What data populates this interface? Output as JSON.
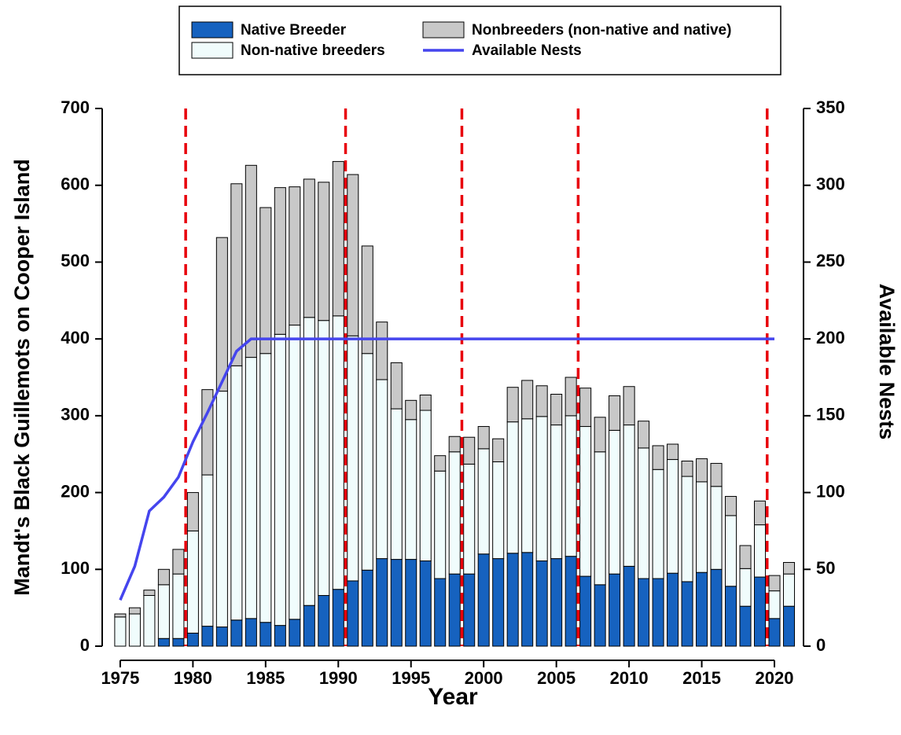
{
  "chart_data": {
    "type": "bar",
    "stacked": true,
    "x_label": "Year",
    "y_label": "Mandt's Black Guillemots on Cooper Island",
    "y2_label": "Available Nests",
    "x": [
      1975,
      1976,
      1977,
      1978,
      1979,
      1980,
      1981,
      1982,
      1983,
      1984,
      1985,
      1986,
      1987,
      1988,
      1989,
      1990,
      1991,
      1992,
      1993,
      1994,
      1995,
      1996,
      1997,
      1998,
      1999,
      2000,
      2001,
      2002,
      2003,
      2004,
      2005,
      2006,
      2007,
      2008,
      2009,
      2010,
      2011,
      2012,
      2013,
      2014,
      2015,
      2016,
      2017,
      2018,
      2019,
      2020,
      2021
    ],
    "series": [
      {
        "name": "Native Breeder",
        "color": "#1662bf",
        "values": [
          0,
          0,
          0,
          10,
          10,
          17,
          26,
          25,
          34,
          36,
          31,
          27,
          35,
          53,
          66,
          74,
          85,
          99,
          114,
          113,
          113,
          111,
          88,
          94,
          94,
          120,
          114,
          121,
          122,
          111,
          114,
          117,
          91,
          80,
          94,
          104,
          88,
          88,
          95,
          84,
          96,
          100,
          78,
          52,
          90,
          36,
          52
        ]
      },
      {
        "name": "Non-native breeders",
        "color": "#f0fcfc",
        "values": [
          38,
          42,
          66,
          70,
          84,
          133,
          197,
          307,
          331,
          340,
          350,
          379,
          383,
          375,
          358,
          356,
          319,
          282,
          233,
          196,
          182,
          196,
          140,
          159,
          143,
          137,
          126,
          171,
          174,
          188,
          174,
          183,
          195,
          173,
          187,
          184,
          170,
          142,
          148,
          137,
          118,
          108,
          92,
          49,
          68,
          36,
          42
        ]
      },
      {
        "name": "Nonbreeders (non-native and native)",
        "color": "#c8c8c8",
        "values": [
          4,
          8,
          7,
          20,
          32,
          50,
          111,
          200,
          237,
          250,
          190,
          191,
          180,
          180,
          180,
          201,
          210,
          140,
          75,
          60,
          25,
          20,
          20,
          20,
          35,
          29,
          30,
          45,
          50,
          40,
          40,
          50,
          50,
          45,
          45,
          50,
          35,
          31,
          20,
          20,
          30,
          30,
          25,
          30,
          31,
          20,
          15
        ]
      },
      {
        "name": "Available Nests",
        "color": "#4545ee",
        "type": "line",
        "axis": "y2",
        "values": [
          30,
          52,
          88,
          97,
          110,
          133,
          152,
          172,
          192,
          200,
          200,
          200,
          200,
          200,
          200,
          200,
          200,
          200,
          200,
          200,
          200,
          200,
          200,
          200,
          200,
          200,
          200,
          200,
          200,
          200,
          200,
          200,
          200,
          200,
          200,
          200,
          200,
          200,
          200,
          200,
          200,
          200,
          200,
          200,
          200,
          200,
          null
        ]
      }
    ],
    "vlines": {
      "x": [
        1979.5,
        1990.5,
        1998.5,
        2006.5,
        2019.5
      ],
      "color": "#e8000b"
    },
    "xlim": [
      1973.76,
      2022
    ],
    "xticks": [
      1975,
      1980,
      1985,
      1990,
      1995,
      2000,
      2005,
      2010,
      2015,
      2020
    ],
    "ylim": [
      0,
      700
    ],
    "yticks": [
      0,
      100,
      200,
      300,
      400,
      500,
      600,
      700
    ],
    "y2lim": [
      0,
      350
    ],
    "y2ticks": [
      0,
      50,
      100,
      150,
      200,
      250,
      300,
      350
    ],
    "legend": "top"
  }
}
